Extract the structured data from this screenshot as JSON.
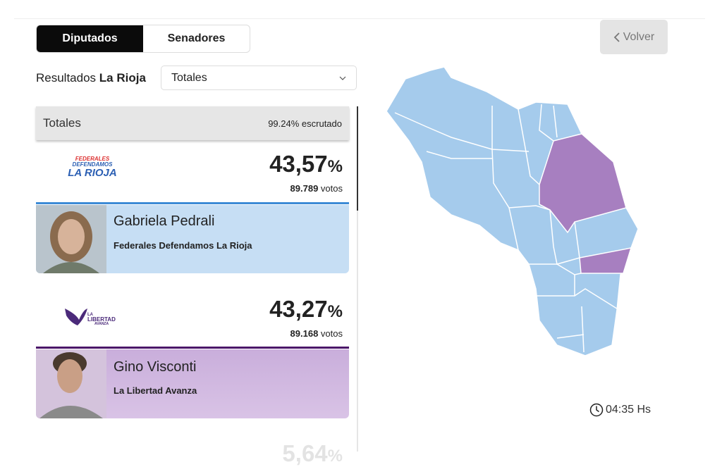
{
  "tabs": [
    "Diputados",
    "Senadores"
  ],
  "back_button": "Volver",
  "filter": {
    "label": "Resultados",
    "province": "La Rioja",
    "dropdown": "Totales"
  },
  "summary": {
    "title": "Totales",
    "counted": "99.24% escrutado"
  },
  "results": [
    {
      "logo": [
        "FEDERALES",
        "DEFENDAMOS",
        "LA RIOJA"
      ],
      "percent": "43,57",
      "percent_sign": "%",
      "votes": "89.789",
      "votes_unit": "votos",
      "candidate": "Gabriela Pedrali",
      "party": "Federales Defendamos La Rioja"
    },
    {
      "logo": [
        "LA",
        "LIBERTAD",
        "AVANZA"
      ],
      "percent": "43,27",
      "percent_sign": "%",
      "votes": "89.168",
      "votes_unit": "votos",
      "candidate": "Gino Visconti",
      "party": "La Libertad Avanza"
    },
    {
      "percent": "5,64",
      "percent_sign": "%"
    }
  ],
  "updated": "04:35 Hs"
}
